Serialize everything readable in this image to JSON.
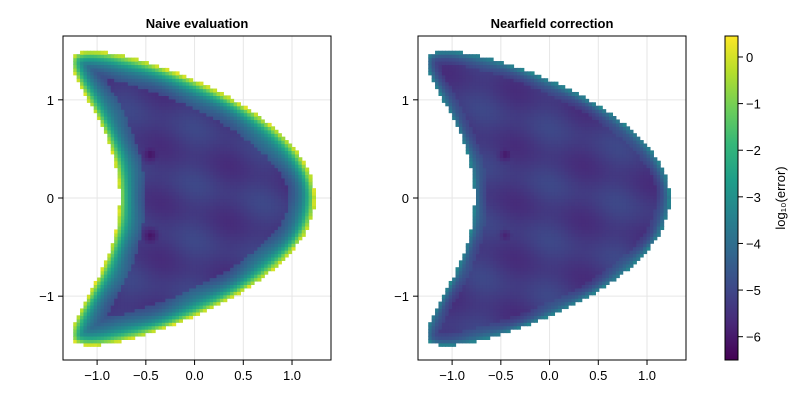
{
  "chart_data": [
    {
      "type": "heatmap",
      "title": "Naive evaluation",
      "xlim": [
        -1.35,
        1.4
      ],
      "ylim": [
        -1.65,
        1.65
      ],
      "xticks": [
        -1.0,
        -0.5,
        0.0,
        0.5,
        1.0
      ],
      "xtick_labels": [
        "−1.0",
        "−0.5",
        "0.0",
        "0.5",
        "1.0"
      ],
      "yticks": [
        -1,
        0,
        1
      ],
      "ytick_labels": [
        "−1",
        "0",
        "1"
      ],
      "grid": true,
      "interior_log10_error": -5.3,
      "boundary_log10_error": 0.3,
      "boundary_layer_width": 0.12,
      "dark_spots": [
        {
          "x": -0.45,
          "y": 0.45,
          "log10_error": -6.2
        },
        {
          "x": -0.45,
          "y": -0.38,
          "log10_error": -6.2
        }
      ]
    },
    {
      "type": "heatmap",
      "title": "Nearfield correction",
      "xlim": [
        -1.35,
        1.4
      ],
      "ylim": [
        -1.65,
        1.65
      ],
      "xticks": [
        -1.0,
        -0.5,
        0.0,
        0.5,
        1.0
      ],
      "xtick_labels": [
        "−1.0",
        "−0.5",
        "0.0",
        "0.5",
        "1.0"
      ],
      "yticks": [
        -1,
        0,
        1
      ],
      "ytick_labels": [
        "−1",
        "0",
        "1"
      ],
      "grid": true,
      "interior_log10_error": -5.3,
      "boundary_log10_error": -3.2,
      "boundary_layer_width": 0.06,
      "dark_spots": [
        {
          "x": -0.45,
          "y": 0.45,
          "log10_error": -6.1
        },
        {
          "x": -0.45,
          "y": -0.38,
          "log10_error": -5.9
        }
      ]
    }
  ],
  "colorbar": {
    "label": "log₁₀(error)",
    "colormap": "viridis",
    "range": [
      -6.5,
      0.45
    ],
    "ticks": [
      0,
      -1,
      -2,
      -3,
      -4,
      -5,
      -6
    ],
    "tick_labels": [
      "0",
      "−1",
      "−2",
      "−3",
      "−4",
      "−5",
      "−6"
    ]
  },
  "colors": {
    "viridis_stops": [
      "#440154",
      "#482878",
      "#3e4989",
      "#31688e",
      "#26828e",
      "#1f9e89",
      "#35b779",
      "#6ece58",
      "#b5de2b",
      "#fde725"
    ]
  }
}
